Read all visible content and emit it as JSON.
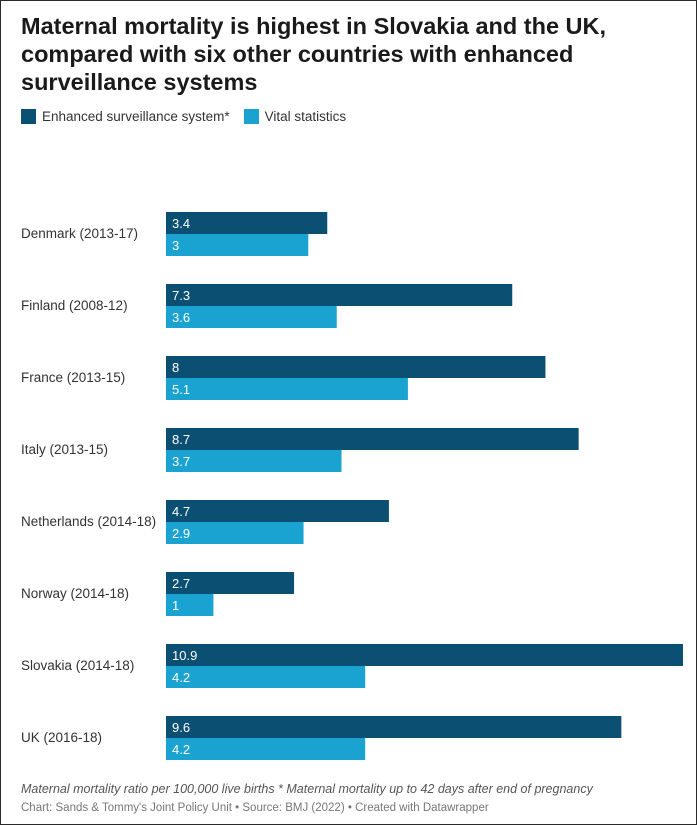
{
  "chart_data": {
    "type": "bar",
    "orientation": "horizontal",
    "title": "Maternal mortality is highest in Slovakia and the UK, compared with six other countries with enhanced surveillance systems",
    "categories": [
      "Denmark (2013-17)",
      "Finland (2008-12)",
      "France (2013-15)",
      "Italy (2013-15)",
      "Netherlands (2014-18)",
      "Norway (2014-18)",
      "Slovakia (2014-18)",
      "UK (2016-18)"
    ],
    "series": [
      {
        "name": "Enhanced surveillance system*",
        "color": "#0b4f73",
        "values": [
          3.4,
          7.3,
          8,
          8.7,
          4.7,
          2.7,
          10.9,
          9.6
        ]
      },
      {
        "name": "Vital statistics",
        "color": "#1aa3d1",
        "values": [
          3,
          3.6,
          5.1,
          3.7,
          2.9,
          1,
          4.2,
          4.2
        ]
      }
    ],
    "xlim": [
      0,
      10.9
    ],
    "grid": false,
    "legend_position": "top-left",
    "notes": "Maternal mortality ratio per 100,000 live births * Maternal mortality up to 42 days after end of pregnancy",
    "credit": "Chart: Sands & Tommy's Joint Policy Unit • Source: BMJ (2022) • Created with Datawrapper"
  }
}
